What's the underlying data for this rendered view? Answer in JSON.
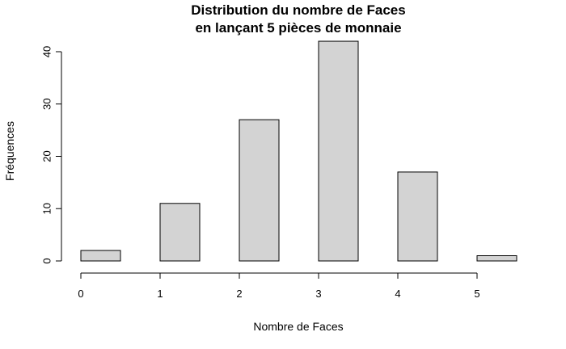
{
  "chart_data": {
    "type": "bar",
    "title_line1": "Distribution du nombre de Faces",
    "title_line2": "en lançant 5 pièces de monnaie",
    "xlabel": "Nombre de Faces",
    "ylabel": "Fréquences",
    "bar_color": "#d3d3d3",
    "categories": [
      "0",
      "1",
      "2",
      "3",
      "4",
      "5"
    ],
    "x": [
      0,
      1,
      2,
      3,
      4,
      5
    ],
    "values": [
      2,
      11,
      27,
      42,
      17,
      1
    ],
    "bar_width": 0.5,
    "x_ticks": [
      0,
      1,
      2,
      3,
      4,
      5
    ],
    "y_ticks": [
      0,
      10,
      20,
      30,
      40
    ],
    "xlim": [
      0,
      5.5
    ],
    "ylim": [
      0,
      42
    ],
    "grid": false
  }
}
